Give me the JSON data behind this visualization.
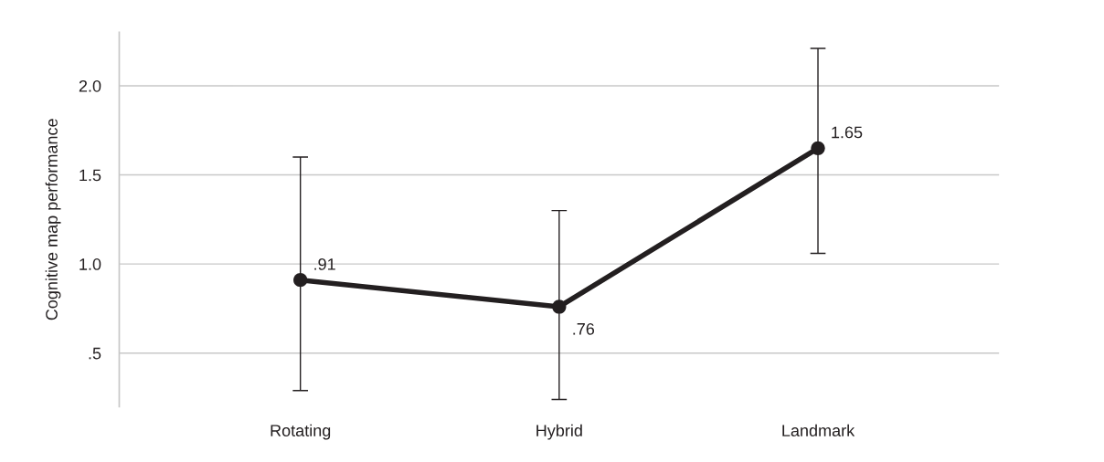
{
  "chart_data": {
    "type": "line",
    "ylabel": "Cognitive map performance",
    "categories": [
      "Rotating",
      "Hybrid",
      "Landmark"
    ],
    "series": [
      {
        "color": "#231f20",
        "values": [
          0.91,
          0.76,
          1.65
        ],
        "value_labels": [
          ".91",
          ".76",
          "1.65"
        ],
        "errors": [
          [
            0.29,
            1.6
          ],
          [
            0.24,
            1.3
          ],
          [
            1.06,
            2.21
          ]
        ]
      }
    ],
    "ylim": [
      0.2,
      2.3
    ],
    "yticks": [
      {
        "value": 0.5,
        "label": ".5"
      },
      {
        "value": 1.0,
        "label": "1.0"
      },
      {
        "value": 1.5,
        "label": "1.5"
      },
      {
        "value": 2.0,
        "label": "2.0"
      }
    ],
    "grid": "y",
    "marker": "circle",
    "line_style": "solid",
    "legend": false
  }
}
